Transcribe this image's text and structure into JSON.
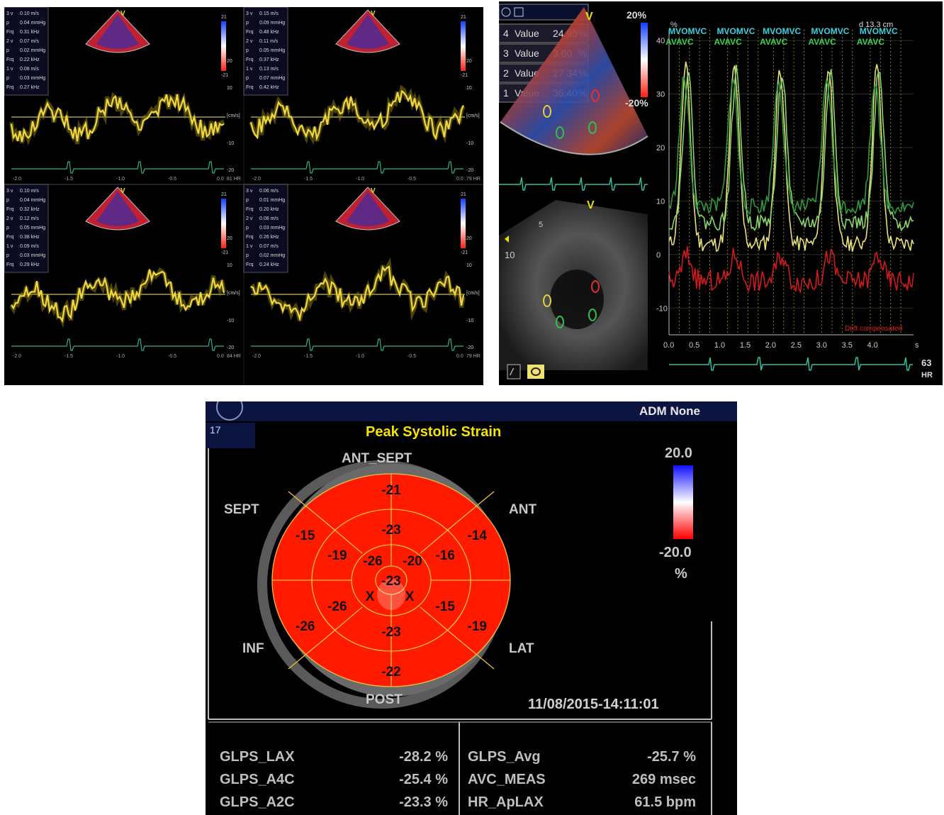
{
  "tdi": {
    "quadrants": [
      {
        "id": "q1",
        "rows": [
          [
            "3 v",
            "0.10 m/s"
          ],
          [
            "p",
            "0.04 mmHg"
          ],
          [
            "Frq",
            "0.31 kHz"
          ],
          [
            "2 v",
            "0.07 m/s"
          ],
          [
            "p",
            "0.02 mmHg"
          ],
          [
            "Frq",
            "0.22 kHz"
          ],
          [
            "1 v",
            "0.08 m/s"
          ],
          [
            "p",
            "0.03 mmHg"
          ],
          [
            "Frq",
            "0.27 kHz"
          ]
        ],
        "scale_top": "21",
        "scale_bot": "-21",
        "axis": [
          "20",
          "10",
          "[cm/s]",
          "-10",
          "-20"
        ],
        "x_ticks": [
          "-2.0",
          "-1.5",
          "-1.0",
          "-0.5",
          "0.0"
        ],
        "hr": "81 HR"
      },
      {
        "id": "q2",
        "rows": [
          [
            "3 v",
            "0.15 m/s"
          ],
          [
            "p",
            "0.09 mmHg"
          ],
          [
            "Frq",
            "0.48 kHz"
          ],
          [
            "2 v",
            "0.11 m/s"
          ],
          [
            "p",
            "0.05 mmHg"
          ],
          [
            "Frq",
            "0.37 kHz"
          ],
          [
            "1 v",
            "0.13 m/s"
          ],
          [
            "p",
            "0.07 mmHg"
          ],
          [
            "Frq",
            "0.42 kHz"
          ]
        ],
        "scale_top": "21",
        "scale_bot": "-21",
        "axis": [
          "20",
          "10",
          "[cm/s]",
          "-10",
          "-20"
        ],
        "x_ticks": [
          "-2.0",
          "-1.5",
          "-1.0",
          "-0.5",
          "0.0"
        ],
        "hr": "79 HR"
      },
      {
        "id": "q3",
        "rows": [
          [
            "3 v",
            "0.10 m/s"
          ],
          [
            "p",
            "0.04 mmHg"
          ],
          [
            "Frq",
            "0.32 kHz"
          ],
          [
            "2 v",
            "0.12 m/s"
          ],
          [
            "p",
            "0.05 mmHg"
          ],
          [
            "Frq",
            "0.38 kHz"
          ],
          [
            "1 v",
            "0.09 m/s"
          ],
          [
            "p",
            "0.03 mmHg"
          ],
          [
            "Frq",
            "0.29 kHz"
          ]
        ],
        "scale_top": "21",
        "scale_bot": "-21",
        "axis": [
          "20",
          "10",
          "[cm/s]",
          "-10",
          "-20"
        ],
        "x_ticks": [
          "-2.0",
          "-1.5",
          "-1.0",
          "-0.5",
          "0.0"
        ],
        "hr": "84 HR"
      },
      {
        "id": "q4",
        "rows": [
          [
            "3 v",
            "0.06 m/s"
          ],
          [
            "p",
            "0.01 mmHg"
          ],
          [
            "Frq",
            "0.20 kHz"
          ],
          [
            "2 v",
            "0.08 m/s"
          ],
          [
            "p",
            "0.03 mmHg"
          ],
          [
            "Frq",
            "0.26 kHz"
          ],
          [
            "1 v",
            "0.07 m/s"
          ],
          [
            "p",
            "0.02 mmHg"
          ],
          [
            "Frq",
            "0.24 kHz"
          ]
        ],
        "scale_top": "21",
        "scale_bot": "-21",
        "axis": [
          "20",
          "10",
          "[cm/s]",
          "-10",
          "-20"
        ],
        "x_ticks": [
          "-2.0",
          "-1.5",
          "-1.0",
          "-0.5",
          "0.0"
        ],
        "hr": "79 HR"
      }
    ]
  },
  "strain": {
    "values": [
      {
        "num": "4",
        "label": "Value",
        "val": "24.95",
        "unit": "%"
      },
      {
        "num": "3",
        "label": "Value",
        "val": "3.60",
        "unit": "%"
      },
      {
        "num": "2",
        "label": "Value",
        "val": "27.34",
        "unit": "%"
      },
      {
        "num": "1",
        "label": "Value",
        "val": "36.40",
        "unit": "%"
      }
    ],
    "scale_top": "20%",
    "scale_bot": "-20%",
    "depth": "d 13.3 cm",
    "percent": "%",
    "mvo_labels": [
      "MVOMVC",
      "MVOMVC",
      "MVOMVC",
      "MVOMVC",
      "MVOMVC"
    ],
    "av_labels": [
      "AVAVC",
      "AVAVC",
      "AVAVC",
      "AVAVC",
      "AVAVC"
    ],
    "y_ticks": [
      "40",
      "30",
      "20",
      "10",
      "0",
      "-10"
    ],
    "x_ticks": [
      "0.0",
      "0.5",
      "1.0",
      "1.5",
      "2.0",
      "2.5",
      "3.0",
      "3.5",
      "4.0"
    ],
    "x_unit": "s",
    "drift": "Drift compensated",
    "hr_value": "63",
    "hr_label": "HR",
    "v_marker": "V",
    "depth_ticks": [
      "5",
      "10"
    ],
    "colors": {
      "yellow": "#e8e17a",
      "green": "#2e9b3c",
      "lightgreen": "#8ad66a",
      "red": "#d21a1a",
      "cyan": "#3ad0e0"
    }
  },
  "bullseye": {
    "header_right": "ADM None",
    "seg_number": "17",
    "title": "Peak Systolic Strain",
    "walls": {
      "ant_sept": "ANT_SEPT",
      "sept": "SEPT",
      "ant": "ANT",
      "inf": "INF",
      "lat": "LAT",
      "post": "POST"
    },
    "outer_ring": [
      "-21",
      "-14",
      "-19",
      "-22",
      "-26",
      "-15"
    ],
    "middle_ring": [
      "-23",
      "-16",
      "-15",
      "-23",
      "-26",
      "-19"
    ],
    "inner_ring": [
      "-26",
      "-20",
      "X",
      "X"
    ],
    "apex": "-23",
    "scale_top": "20.0",
    "scale_bot": "-20.0",
    "scale_unit": "%",
    "datetime": "11/08/2015-14:11:01",
    "measurements_left": [
      {
        "label": "GLPS_LAX",
        "value": "-28.2 %"
      },
      {
        "label": "GLPS_A4C",
        "value": "-25.4 %"
      },
      {
        "label": "GLPS_A2C",
        "value": "-23.3 %"
      }
    ],
    "measurements_right": [
      {
        "label": "GLPS_Avg",
        "value": "-25.7 %"
      },
      {
        "label": "AVC_MEAS",
        "value": "269 msec"
      },
      {
        "label": "HR_ApLAX",
        "value": "61.5 bpm"
      }
    ],
    "colors": {
      "segment_red": "#ff1a00",
      "ring_gray": "#5a5a5a",
      "title_yellow": "#f5e400"
    }
  }
}
